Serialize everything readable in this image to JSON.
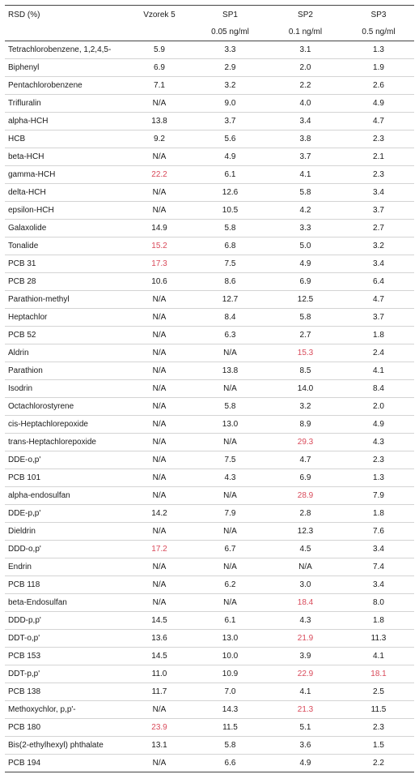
{
  "header": {
    "col0": "RSD (%)",
    "col1": "Vzorek 5",
    "col2": "SP1",
    "col3": "SP2",
    "col4": "SP3",
    "sub2": "0.05 ng/ml",
    "sub3": "0.1 ng/ml",
    "sub4": "0.5 ng/ml"
  },
  "highlight_color": "#d94a5a",
  "rows": [
    {
      "name": "Tetrachlorobenzene, 1,2,4,5-",
      "v": [
        "5.9",
        "3.3",
        "3.1",
        "1.3"
      ],
      "hl": [
        false,
        false,
        false,
        false
      ]
    },
    {
      "name": "Biphenyl",
      "v": [
        "6.9",
        "2.9",
        "2.0",
        "1.9"
      ],
      "hl": [
        false,
        false,
        false,
        false
      ]
    },
    {
      "name": "Pentachlorobenzene",
      "v": [
        "7.1",
        "3.2",
        "2.2",
        "2.6"
      ],
      "hl": [
        false,
        false,
        false,
        false
      ]
    },
    {
      "name": "Trifluralin",
      "v": [
        "N/A",
        "9.0",
        "4.0",
        "4.9"
      ],
      "hl": [
        false,
        false,
        false,
        false
      ]
    },
    {
      "name": "alpha-HCH",
      "v": [
        "13.8",
        "3.7",
        "3.4",
        "4.7"
      ],
      "hl": [
        false,
        false,
        false,
        false
      ]
    },
    {
      "name": "HCB",
      "v": [
        "9.2",
        "5.6",
        "3.8",
        "2.3"
      ],
      "hl": [
        false,
        false,
        false,
        false
      ]
    },
    {
      "name": "beta-HCH",
      "v": [
        "N/A",
        "4.9",
        "3.7",
        "2.1"
      ],
      "hl": [
        false,
        false,
        false,
        false
      ]
    },
    {
      "name": "gamma-HCH",
      "v": [
        "22.2",
        "6.1",
        "4.1",
        "2.3"
      ],
      "hl": [
        true,
        false,
        false,
        false
      ]
    },
    {
      "name": "delta-HCH",
      "v": [
        "N/A",
        "12.6",
        "5.8",
        "3.4"
      ],
      "hl": [
        false,
        false,
        false,
        false
      ]
    },
    {
      "name": "epsilon-HCH",
      "v": [
        "N/A",
        "10.5",
        "4.2",
        "3.7"
      ],
      "hl": [
        false,
        false,
        false,
        false
      ]
    },
    {
      "name": "Galaxolide",
      "v": [
        "14.9",
        "5.8",
        "3.3",
        "2.7"
      ],
      "hl": [
        false,
        false,
        false,
        false
      ]
    },
    {
      "name": "Tonalide",
      "v": [
        "15.2",
        "6.8",
        "5.0",
        "3.2"
      ],
      "hl": [
        true,
        false,
        false,
        false
      ]
    },
    {
      "name": "PCB 31",
      "v": [
        "17.3",
        "7.5",
        "4.9",
        "3.4"
      ],
      "hl": [
        true,
        false,
        false,
        false
      ]
    },
    {
      "name": "PCB 28",
      "v": [
        "10.6",
        "8.6",
        "6.9",
        "6.4"
      ],
      "hl": [
        false,
        false,
        false,
        false
      ]
    },
    {
      "name": "Parathion-methyl",
      "v": [
        "N/A",
        "12.7",
        "12.5",
        "4.7"
      ],
      "hl": [
        false,
        false,
        false,
        false
      ]
    },
    {
      "name": "Heptachlor",
      "v": [
        "N/A",
        "8.4",
        "5.8",
        "3.7"
      ],
      "hl": [
        false,
        false,
        false,
        false
      ]
    },
    {
      "name": "PCB 52",
      "v": [
        "N/A",
        "6.3",
        "2.7",
        "1.8"
      ],
      "hl": [
        false,
        false,
        false,
        false
      ]
    },
    {
      "name": "Aldrin",
      "v": [
        "N/A",
        "N/A",
        "15.3",
        "2.4"
      ],
      "hl": [
        false,
        false,
        true,
        false
      ]
    },
    {
      "name": "Parathion",
      "v": [
        "N/A",
        "13.8",
        "8.5",
        "4.1"
      ],
      "hl": [
        false,
        false,
        false,
        false
      ]
    },
    {
      "name": "Isodrin",
      "v": [
        "N/A",
        "N/A",
        "14.0",
        "8.4"
      ],
      "hl": [
        false,
        false,
        false,
        false
      ]
    },
    {
      "name": "Octachlorostyrene",
      "v": [
        "N/A",
        "5.8",
        "3.2",
        "2.0"
      ],
      "hl": [
        false,
        false,
        false,
        false
      ]
    },
    {
      "name": "cis-Heptachlorepoxide",
      "v": [
        "N/A",
        "13.0",
        "8.9",
        "4.9"
      ],
      "hl": [
        false,
        false,
        false,
        false
      ]
    },
    {
      "name": "trans-Heptachlorepoxide",
      "v": [
        "N/A",
        "N/A",
        "29.3",
        "4.3"
      ],
      "hl": [
        false,
        false,
        true,
        false
      ]
    },
    {
      "name": "DDE-o,p'",
      "v": [
        "N/A",
        "7.5",
        "4.7",
        "2.3"
      ],
      "hl": [
        false,
        false,
        false,
        false
      ]
    },
    {
      "name": "PCB 101",
      "v": [
        "N/A",
        "4.3",
        "6.9",
        "1.3"
      ],
      "hl": [
        false,
        false,
        false,
        false
      ]
    },
    {
      "name": "alpha-endosulfan",
      "v": [
        "N/A",
        "N/A",
        "28.9",
        "7.9"
      ],
      "hl": [
        false,
        false,
        true,
        false
      ]
    },
    {
      "name": "DDE-p,p'",
      "v": [
        "14.2",
        "7.9",
        "2.8",
        "1.8"
      ],
      "hl": [
        false,
        false,
        false,
        false
      ]
    },
    {
      "name": "Dieldrin",
      "v": [
        "N/A",
        "N/A",
        "12.3",
        "7.6"
      ],
      "hl": [
        false,
        false,
        false,
        false
      ]
    },
    {
      "name": "DDD-o,p'",
      "v": [
        "17.2",
        "6.7",
        "4.5",
        "3.4"
      ],
      "hl": [
        true,
        false,
        false,
        false
      ]
    },
    {
      "name": "Endrin",
      "v": [
        "N/A",
        "N/A",
        "N/A",
        "7.4"
      ],
      "hl": [
        false,
        false,
        false,
        false
      ]
    },
    {
      "name": "PCB 118",
      "v": [
        "N/A",
        "6.2",
        "3.0",
        "3.4"
      ],
      "hl": [
        false,
        false,
        false,
        false
      ]
    },
    {
      "name": "beta-Endosulfan",
      "v": [
        "N/A",
        "N/A",
        "18.4",
        "8.0"
      ],
      "hl": [
        false,
        false,
        true,
        false
      ]
    },
    {
      "name": "DDD-p,p'",
      "v": [
        "14.5",
        "6.1",
        "4.3",
        "1.8"
      ],
      "hl": [
        false,
        false,
        false,
        false
      ]
    },
    {
      "name": "DDT-o,p'",
      "v": [
        "13.6",
        "13.0",
        "21.9",
        "11.3"
      ],
      "hl": [
        false,
        false,
        true,
        false
      ]
    },
    {
      "name": "PCB 153",
      "v": [
        "14.5",
        "10.0",
        "3.9",
        "4.1"
      ],
      "hl": [
        false,
        false,
        false,
        false
      ]
    },
    {
      "name": "DDT-p,p'",
      "v": [
        "11.0",
        "10.9",
        "22.9",
        "18.1"
      ],
      "hl": [
        false,
        false,
        true,
        true
      ]
    },
    {
      "name": "PCB 138",
      "v": [
        "11.7",
        "7.0",
        "4.1",
        "2.5"
      ],
      "hl": [
        false,
        false,
        false,
        false
      ]
    },
    {
      "name": "Methoxychlor, p,p'-",
      "v": [
        "N/A",
        "14.3",
        "21.3",
        "11.5"
      ],
      "hl": [
        false,
        false,
        true,
        false
      ]
    },
    {
      "name": "PCB 180",
      "v": [
        "23.9",
        "11.5",
        "5.1",
        "2.3"
      ],
      "hl": [
        true,
        false,
        false,
        false
      ]
    },
    {
      "name": "Bis(2-ethylhexyl) phthalate",
      "v": [
        "13.1",
        "5.8",
        "3.6",
        "1.5"
      ],
      "hl": [
        false,
        false,
        false,
        false
      ]
    },
    {
      "name": "PCB 194",
      "v": [
        "N/A",
        "6.6",
        "4.9",
        "2.2"
      ],
      "hl": [
        false,
        false,
        false,
        false
      ]
    }
  ]
}
